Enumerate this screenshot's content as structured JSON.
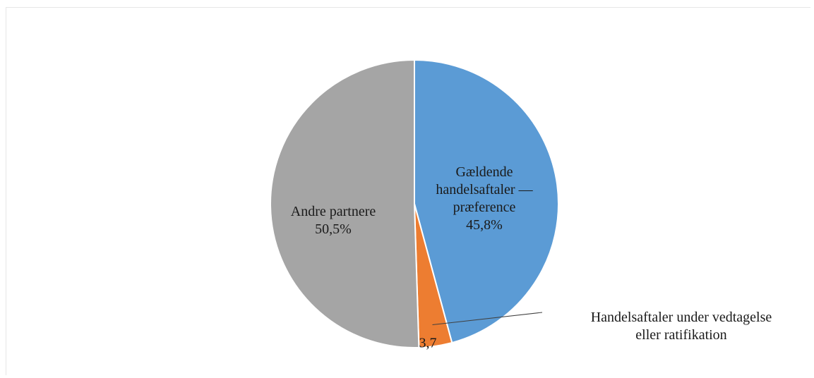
{
  "chart_data": {
    "type": "pie",
    "categories": [
      "Gældende handelsaftaler — præference",
      "Handelsaftaler under vedtagelse eller ratifikation",
      "Andre partnere"
    ],
    "values": [
      45.8,
      3.7,
      50.5
    ],
    "value_labels": [
      "45,8%",
      "3,7",
      "50,5%"
    ],
    "colors": [
      "#5b9bd5",
      "#ed7d31",
      "#a5a5a5"
    ]
  }
}
